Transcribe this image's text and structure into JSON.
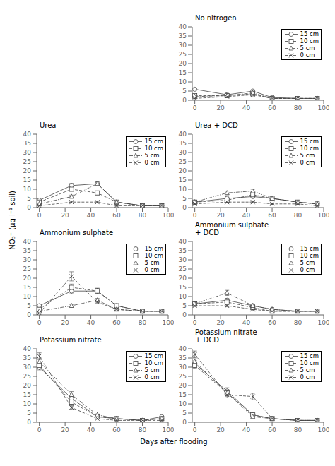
{
  "chart_data": [
    {
      "type": "line",
      "title": "No nitrogen",
      "x": [
        0,
        25,
        45,
        60,
        80,
        95
      ],
      "xlim": [
        -2,
        100
      ],
      "xticks": [
        0,
        20,
        40,
        60,
        80,
        100
      ],
      "ylim": [
        0,
        40
      ],
      "yticks": [
        0,
        5,
        10,
        15,
        20,
        25,
        30,
        35,
        40
      ],
      "grid": false,
      "legend": "upper right",
      "series": [
        {
          "name": "15 cm",
          "color": "#444444",
          "marker": "circle",
          "line_style": "solid",
          "values": [
            6,
            3,
            5,
            1.5,
            1,
            1
          ],
          "errors": [
            0.5,
            0.4,
            0.6,
            0.3,
            0.2,
            0.2
          ]
        },
        {
          "name": "10 cm",
          "color": "#444444",
          "marker": "square",
          "line_style": "dashed",
          "values": [
            2.5,
            2.5,
            3.5,
            1,
            1,
            1
          ],
          "errors": [
            0.4,
            0.3,
            0.5,
            0.2,
            0.2,
            0.2
          ]
        },
        {
          "name": "5 cm",
          "color": "#444444",
          "marker": "triangle",
          "line_style": "dashdot",
          "values": [
            2,
            2.5,
            4,
            1,
            1,
            1
          ],
          "errors": [
            0.3,
            0.3,
            0.5,
            0.2,
            0.2,
            0.2
          ]
        },
        {
          "name": "0 cm",
          "color": "#444444",
          "marker": "x",
          "line_style": "dashed",
          "values": [
            1,
            2,
            3,
            1,
            1,
            1
          ],
          "errors": [
            0.2,
            0.3,
            0.4,
            0.2,
            0.2,
            0.2
          ]
        }
      ]
    },
    {
      "type": "line",
      "title": "Urea",
      "x": [
        0,
        25,
        45,
        60,
        80,
        95
      ],
      "xlim": [
        -2,
        100
      ],
      "xticks": [
        0,
        20,
        40,
        60,
        80,
        100
      ],
      "ylim": [
        0,
        40
      ],
      "yticks": [
        0,
        5,
        10,
        15,
        20,
        25,
        30,
        35,
        40
      ],
      "grid": false,
      "legend": "upper right",
      "series": [
        {
          "name": "15 cm",
          "color": "#444444",
          "marker": "circle",
          "line_style": "solid",
          "values": [
            4,
            12,
            13,
            3,
            1,
            1
          ],
          "errors": [
            0.5,
            1.2,
            1.2,
            0.5,
            0.2,
            0.3
          ]
        },
        {
          "name": "10 cm",
          "color": "#444444",
          "marker": "square",
          "line_style": "dashed",
          "values": [
            3,
            10,
            8,
            3,
            1,
            1
          ],
          "errors": [
            0.4,
            1.0,
            1.0,
            0.4,
            0.2,
            0.2
          ]
        },
        {
          "name": "5 cm",
          "color": "#444444",
          "marker": "triangle",
          "line_style": "dashdot",
          "values": [
            2,
            6,
            13,
            3,
            1,
            1
          ],
          "errors": [
            0.3,
            0.8,
            1.2,
            0.4,
            0.2,
            0.2
          ]
        },
        {
          "name": "0 cm",
          "color": "#444444",
          "marker": "x",
          "line_style": "dashed",
          "values": [
            1,
            3,
            3,
            1,
            1,
            1
          ],
          "errors": [
            0.2,
            0.4,
            0.4,
            0.2,
            0.1,
            0.1
          ]
        }
      ]
    },
    {
      "type": "line",
      "title": "Urea + DCD",
      "x": [
        0,
        25,
        45,
        60,
        80,
        95
      ],
      "xlim": [
        -2,
        100
      ],
      "xticks": [
        0,
        20,
        40,
        60,
        80,
        100
      ],
      "ylim": [
        0,
        40
      ],
      "yticks": [
        0,
        5,
        10,
        15,
        20,
        25,
        30,
        35,
        40
      ],
      "grid": false,
      "legend": "upper right",
      "series": [
        {
          "name": "15 cm",
          "color": "#444444",
          "marker": "circle",
          "line_style": "solid",
          "values": [
            3,
            5,
            6,
            5,
            3,
            2
          ],
          "errors": [
            0.5,
            0.6,
            0.8,
            0.6,
            0.4,
            0.3
          ]
        },
        {
          "name": "10 cm",
          "color": "#444444",
          "marker": "square",
          "line_style": "dashed",
          "values": [
            3,
            4,
            7,
            5,
            3,
            2
          ],
          "errors": [
            0.5,
            0.5,
            0.8,
            0.6,
            0.3,
            0.3
          ]
        },
        {
          "name": "5 cm",
          "color": "#444444",
          "marker": "triangle",
          "line_style": "dashdot",
          "values": [
            3,
            8,
            9,
            5,
            3,
            2
          ],
          "errors": [
            0.5,
            1.0,
            1.0,
            0.6,
            0.3,
            0.3
          ]
        },
        {
          "name": "0 cm",
          "color": "#444444",
          "marker": "x",
          "line_style": "dashed",
          "values": [
            2,
            3,
            3,
            2,
            2,
            1
          ],
          "errors": [
            0.3,
            0.4,
            0.4,
            0.3,
            0.2,
            0.2
          ]
        }
      ]
    },
    {
      "type": "line",
      "title": "Ammonium sulphate",
      "x": [
        0,
        25,
        45,
        60,
        80,
        95
      ],
      "xlim": [
        -2,
        100
      ],
      "xticks": [
        0,
        20,
        40,
        60,
        80,
        100
      ],
      "ylim": [
        0,
        40
      ],
      "yticks": [
        0,
        5,
        10,
        15,
        20,
        25,
        30,
        35,
        40
      ],
      "grid": false,
      "legend": "upper right",
      "series": [
        {
          "name": "15 cm",
          "color": "#444444",
          "marker": "circle",
          "line_style": "solid",
          "values": [
            5,
            13,
            13,
            5,
            2,
            2
          ],
          "errors": [
            0.5,
            1.5,
            1.5,
            0.8,
            0.3,
            0.3
          ]
        },
        {
          "name": "10 cm",
          "color": "#444444",
          "marker": "square",
          "line_style": "dashed",
          "values": [
            3,
            15,
            13,
            5,
            2,
            2
          ],
          "errors": [
            0.4,
            1.8,
            1.5,
            0.8,
            0.3,
            0.3
          ]
        },
        {
          "name": "5 cm",
          "color": "#444444",
          "marker": "triangle",
          "line_style": "dashdot",
          "values": [
            2,
            5,
            8,
            3,
            2,
            2
          ],
          "errors": [
            0.3,
            0.7,
            1.0,
            0.5,
            0.3,
            0.3
          ]
        },
        {
          "name": "0 cm",
          "color": "#444444",
          "marker": "x",
          "line_style": "dashed",
          "values": [
            1,
            21,
            7,
            3,
            2,
            2
          ],
          "errors": [
            0.2,
            2.5,
            1.0,
            0.5,
            0.2,
            0.2
          ]
        }
      ]
    },
    {
      "type": "line",
      "title": "Ammonium sulphate\n+ DCD",
      "x": [
        0,
        25,
        45,
        60,
        80,
        95
      ],
      "xlim": [
        -2,
        100
      ],
      "xticks": [
        0,
        20,
        40,
        60,
        80,
        100
      ],
      "ylim": [
        0,
        40
      ],
      "yticks": [
        0,
        5,
        10,
        15,
        20,
        25,
        30,
        35,
        40
      ],
      "grid": false,
      "legend": "upper right",
      "series": [
        {
          "name": "15 cm",
          "color": "#444444",
          "marker": "circle",
          "line_style": "solid",
          "values": [
            6,
            8,
            5,
            3,
            2,
            2
          ],
          "errors": [
            0.6,
            1.0,
            0.6,
            0.4,
            0.3,
            0.3
          ]
        },
        {
          "name": "10 cm",
          "color": "#444444",
          "marker": "square",
          "line_style": "dashed",
          "values": [
            6,
            7,
            4,
            2,
            2,
            2
          ],
          "errors": [
            0.6,
            0.9,
            0.5,
            0.3,
            0.3,
            0.3
          ]
        },
        {
          "name": "5 cm",
          "color": "#444444",
          "marker": "triangle",
          "line_style": "dashdot",
          "values": [
            6,
            12,
            5,
            3,
            2,
            2
          ],
          "errors": [
            0.6,
            1.4,
            0.6,
            0.4,
            0.3,
            0.3
          ]
        },
        {
          "name": "0 cm",
          "color": "#444444",
          "marker": "x",
          "line_style": "dashed",
          "values": [
            5,
            5,
            3,
            2,
            2,
            2
          ],
          "errors": [
            0.5,
            0.6,
            0.4,
            0.3,
            0.2,
            0.2
          ]
        }
      ]
    },
    {
      "type": "line",
      "title": "Potassium nitrate",
      "x": [
        0,
        25,
        45,
        60,
        80,
        95
      ],
      "xlim": [
        -2,
        100
      ],
      "xticks": [
        0,
        20,
        40,
        60,
        80,
        100
      ],
      "ylim": [
        0,
        40
      ],
      "yticks": [
        0,
        5,
        10,
        15,
        20,
        25,
        30,
        35,
        40
      ],
      "grid": false,
      "legend": "upper right",
      "series": [
        {
          "name": "15 cm",
          "color": "#444444",
          "marker": "circle",
          "line_style": "solid",
          "values": [
            30,
            13,
            3,
            2,
            1,
            3
          ],
          "errors": [
            1.5,
            1.5,
            0.4,
            0.3,
            0.2,
            0.4
          ]
        },
        {
          "name": "10 cm",
          "color": "#444444",
          "marker": "square",
          "line_style": "dashed",
          "values": [
            31,
            11,
            3,
            2,
            1,
            2
          ],
          "errors": [
            1.5,
            1.3,
            0.4,
            0.3,
            0.2,
            0.3
          ]
        },
        {
          "name": "5 cm",
          "color": "#444444",
          "marker": "triangle",
          "line_style": "dashdot",
          "values": [
            33,
            15,
            4,
            2,
            1,
            2
          ],
          "errors": [
            1.6,
            1.7,
            0.5,
            0.3,
            0.2,
            0.3
          ]
        },
        {
          "name": "0 cm",
          "color": "#444444",
          "marker": "x",
          "line_style": "dashed",
          "values": [
            36,
            8,
            2,
            1,
            1,
            1
          ],
          "errors": [
            1.8,
            1.0,
            0.3,
            0.2,
            0.2,
            0.2
          ]
        }
      ]
    },
    {
      "type": "line",
      "title": "Potassium nitrate\n+ DCD",
      "x": [
        0,
        25,
        45,
        60,
        80,
        95
      ],
      "xlim": [
        -2,
        100
      ],
      "xticks": [
        0,
        20,
        40,
        60,
        80,
        100
      ],
      "ylim": [
        0,
        40
      ],
      "yticks": [
        0,
        5,
        10,
        15,
        20,
        25,
        30,
        35,
        40
      ],
      "grid": false,
      "legend": "upper right",
      "series": [
        {
          "name": "15 cm",
          "color": "#444444",
          "marker": "circle",
          "line_style": "solid",
          "values": [
            32,
            17,
            4,
            2,
            1,
            1
          ],
          "errors": [
            1.5,
            1.8,
            0.5,
            0.3,
            0.2,
            0.2
          ]
        },
        {
          "name": "10 cm",
          "color": "#444444",
          "marker": "square",
          "line_style": "dashed",
          "values": [
            31,
            16,
            4,
            2,
            1,
            1
          ],
          "errors": [
            1.5,
            1.7,
            0.5,
            0.3,
            0.2,
            0.2
          ]
        },
        {
          "name": "5 cm",
          "color": "#444444",
          "marker": "triangle",
          "line_style": "dashdot",
          "values": [
            33,
            16,
            3,
            2,
            1,
            1
          ],
          "errors": [
            1.6,
            1.7,
            0.4,
            0.3,
            0.2,
            0.2
          ]
        },
        {
          "name": "0 cm",
          "color": "#444444",
          "marker": "x",
          "line_style": "dashed",
          "values": [
            37,
            15,
            14,
            2,
            1,
            1
          ],
          "errors": [
            1.8,
            1.7,
            1.8,
            0.3,
            0.2,
            0.2
          ]
        }
      ]
    }
  ],
  "xlabel": "Days after flooding",
  "ylabel": "NO₃⁻ (µg l⁻¹ soil)"
}
